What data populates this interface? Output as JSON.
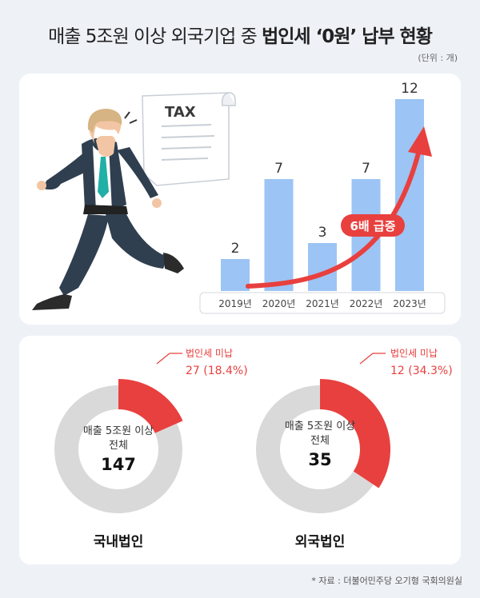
{
  "header": {
    "title_prefix": "매출 5조원 이상 외국기업 중 ",
    "title_highlight": "법인세 ‘0원’ 납부 현황",
    "unit": "(단위 : 개)"
  },
  "illustration": {
    "tax_label": "TAX"
  },
  "annotation": {
    "surge_label": "6배 급증"
  },
  "colors": {
    "bar": "#9cc4f5",
    "red": "#e8403e",
    "gray": "#d9d9d9",
    "accent": "#e8403e"
  },
  "donuts": [
    {
      "category": "국내법인",
      "center_label_1": "매출 5조원 이상",
      "center_label_2": "전체",
      "total": "147",
      "callout_label": "법인세 미납",
      "callout_value": "27 (18.4%)"
    },
    {
      "category": "외국법인",
      "center_label_1": "매출 5조원 이상",
      "center_label_2": "전체",
      "total": "35",
      "callout_label": "법인세 미납",
      "callout_value": "12 (34.3%)"
    }
  ],
  "chart_data": [
    {
      "type": "bar",
      "categories": [
        "2019년",
        "2020년",
        "2021년",
        "2022년",
        "2023년"
      ],
      "values": [
        2,
        7,
        3,
        7,
        12
      ],
      "ylim": [
        0,
        12
      ]
    },
    {
      "type": "pie",
      "title": "국내법인",
      "total": 147,
      "slices": [
        {
          "label": "법인세 미납",
          "value": 27,
          "percent": 18.4
        },
        {
          "label": "",
          "value": 120
        }
      ]
    },
    {
      "type": "pie",
      "title": "외국법인",
      "total": 35,
      "slices": [
        {
          "label": "법인세 미납",
          "value": 12,
          "percent": 34.3
        },
        {
          "label": "",
          "value": 23
        }
      ]
    }
  ],
  "footer": {
    "source": "* 자료 : 더불어민주당 오기형 국회의원실"
  }
}
